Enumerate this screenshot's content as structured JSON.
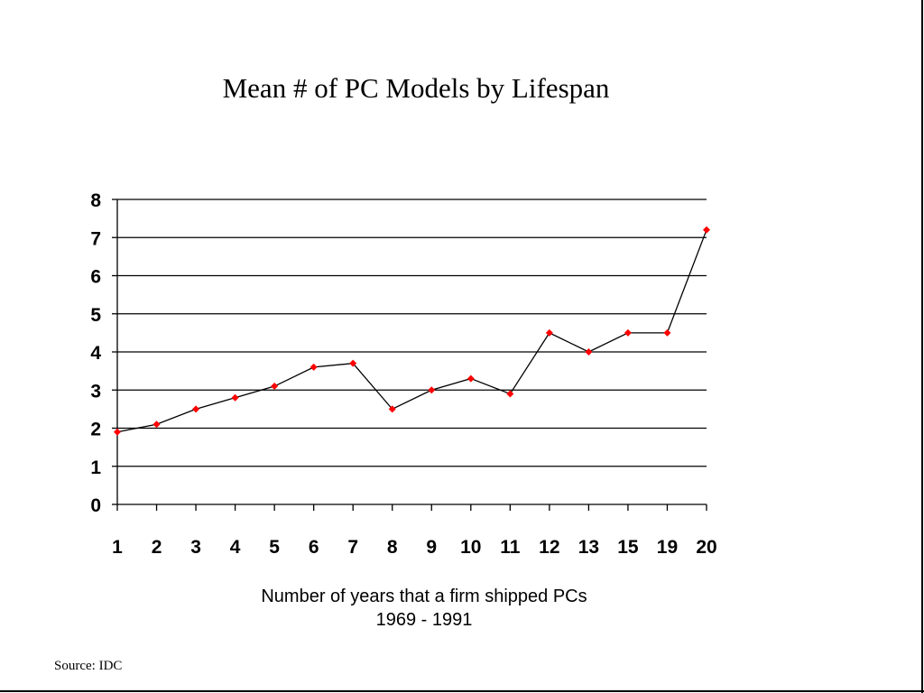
{
  "chart_data": {
    "type": "line",
    "title": "Mean # of PC Models by Lifespan",
    "xlabel": "Number of years that a firm shipped PCs",
    "xlabel_sub": "1969 - 1991",
    "ylabel": "",
    "categories": [
      "1",
      "2",
      "3",
      "4",
      "5",
      "6",
      "7",
      "8",
      "9",
      "10",
      "11",
      "12",
      "13",
      "15",
      "19",
      "20"
    ],
    "series": [
      {
        "values": [
          1.9,
          2.1,
          2.5,
          2.8,
          3.1,
          3.6,
          3.7,
          2.5,
          3.0,
          3.3,
          2.9,
          4.5,
          4.0,
          4.5,
          4.5,
          7.2
        ]
      }
    ],
    "ylim": [
      0,
      8
    ],
    "yticks": [
      0,
      1,
      2,
      3,
      4,
      5,
      6,
      7,
      8
    ],
    "grid": true,
    "legend": "none",
    "colors": {
      "line": "#000000",
      "marker": "#ff0000",
      "grid": "#000000"
    }
  },
  "source": "Source:  IDC"
}
